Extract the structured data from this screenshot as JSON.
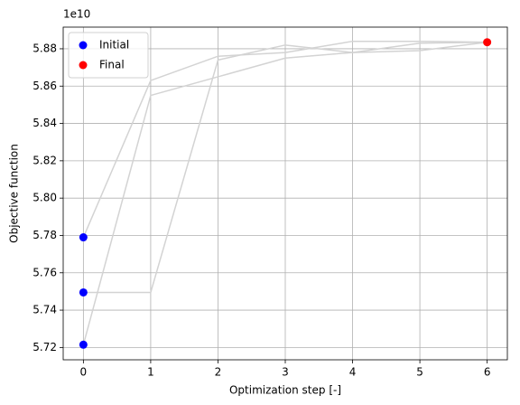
{
  "chart_data": {
    "type": "line",
    "y_offset_label": "1e10",
    "xlabel": "Optimization step [-]",
    "ylabel": "Objective function",
    "xlim": [
      -0.3,
      6.3
    ],
    "ylim": [
      5.7134,
      5.8916
    ],
    "xticks": [
      0,
      1,
      2,
      3,
      4,
      5,
      6
    ],
    "yticks": [
      5.72,
      5.74,
      5.76,
      5.78,
      {
        "value": 5.8,
        "label": "5.80"
      },
      5.82,
      5.84,
      5.86,
      5.88
    ],
    "grid": true,
    "legend": "upper left",
    "series": [
      {
        "type": "line",
        "color": "#d3d3d3",
        "x": [
          0,
          1,
          2,
          3,
          4,
          5,
          6
        ],
        "values": [
          5.7215,
          5.855,
          5.865,
          5.875,
          5.878,
          5.879,
          5.8835
        ]
      },
      {
        "type": "line",
        "color": "#d3d3d3",
        "x": [
          0,
          1,
          2,
          3,
          4,
          5,
          6
        ],
        "values": [
          5.7495,
          5.7495,
          5.874,
          5.882,
          5.878,
          5.883,
          5.8835
        ]
      },
      {
        "type": "line",
        "color": "#d3d3d3",
        "x": [
          0,
          1,
          2,
          3,
          4,
          5,
          6
        ],
        "values": [
          5.779,
          5.863,
          5.876,
          5.878,
          5.884,
          5.884,
          5.8835
        ]
      },
      {
        "type": "scatter",
        "name": "Initial",
        "color": "#0000ff",
        "x": [
          0,
          0,
          0
        ],
        "values": [
          5.779,
          5.7495,
          5.7215
        ]
      },
      {
        "type": "scatter",
        "name": "Final",
        "color": "#ff0000",
        "x": [
          6
        ],
        "values": [
          5.8835
        ]
      }
    ]
  }
}
